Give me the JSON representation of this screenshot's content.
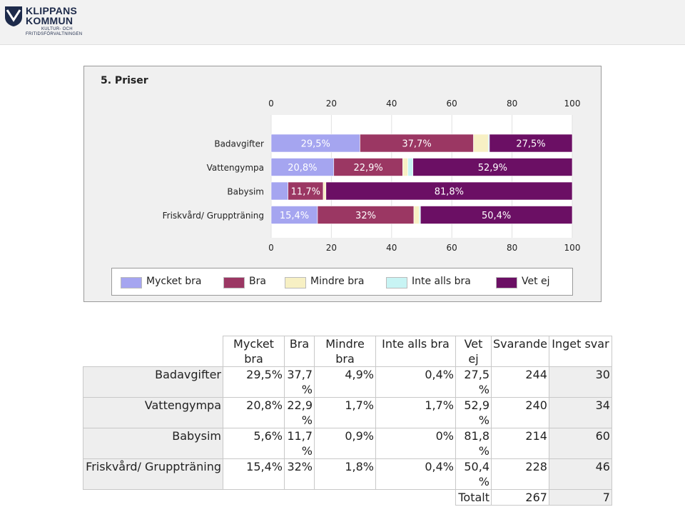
{
  "logo": {
    "name_line1": "KLIPPANS",
    "name_line2": "KOMMUN",
    "sub_line1": "KULTUR- OCH",
    "sub_line2": "FRITIDSFÖRVALTNINGEN"
  },
  "chart_data": {
    "type": "bar",
    "orientation": "horizontal",
    "stacked": true,
    "title": "5. Priser",
    "categories": [
      "Badavgifter",
      "Vattengympa",
      "Babysim",
      "Friskvård/ Gruppträning"
    ],
    "series": [
      {
        "name": "Mycket bra",
        "color": "#a5a5f0",
        "values": [
          29.5,
          20.8,
          5.6,
          15.4
        ],
        "labels": [
          "29,5%",
          "20,8%",
          "",
          "15,4%"
        ]
      },
      {
        "name": "Bra",
        "color": "#9b3763",
        "values": [
          37.7,
          22.9,
          11.7,
          32
        ],
        "labels": [
          "37,7%",
          "22,9%",
          "11,7%",
          "32%"
        ]
      },
      {
        "name": "Mindre bra",
        "color": "#f7f0c4",
        "values": [
          4.9,
          1.7,
          0.9,
          1.8
        ],
        "labels": [
          "",
          "",
          "",
          ""
        ]
      },
      {
        "name": "Inte alls bra",
        "color": "#c8f4f4",
        "values": [
          0.4,
          1.7,
          0,
          0.4
        ],
        "labels": [
          "",
          "",
          "",
          ""
        ]
      },
      {
        "name": "Vet ej",
        "color": "#6b0f64",
        "values": [
          27.5,
          52.9,
          81.8,
          50.4
        ],
        "labels": [
          "27,5%",
          "52,9%",
          "81,8%",
          "50,4%"
        ]
      }
    ],
    "xlim": [
      0,
      100
    ],
    "ticks": [
      "0",
      "20",
      "40",
      "60",
      "80",
      "100"
    ],
    "legend_position": "bottom"
  },
  "table": {
    "headers": [
      "Mycket bra",
      "Bra",
      "Mindre bra",
      "Inte alls bra",
      "Vet ej",
      "Svarande",
      "Inget svar"
    ],
    "rows": [
      {
        "label": "Badavgifter",
        "cells": [
          "29,5%",
          "37,7 %",
          "4,9%",
          "0,4%",
          "27,5 %",
          "244",
          "30"
        ]
      },
      {
        "label": "Vattengympa",
        "cells": [
          "20,8%",
          "22,9 %",
          "1,7%",
          "1,7%",
          "52,9 %",
          "240",
          "34"
        ]
      },
      {
        "label": "Babysim",
        "cells": [
          "5,6%",
          "11,7 %",
          "0,9%",
          "0%",
          "81,8 %",
          "214",
          "60"
        ]
      },
      {
        "label": "Friskvård/ Gruppträning",
        "cells": [
          "15,4%",
          "32%",
          "1,8%",
          "0,4%",
          "50,4 %",
          "228",
          "46"
        ]
      }
    ],
    "total": {
      "label": "Totalt",
      "svarande": "267",
      "inget_svar": "7"
    }
  }
}
